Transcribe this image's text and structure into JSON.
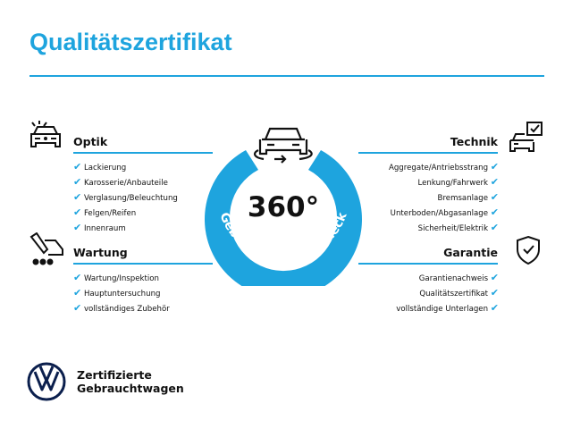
{
  "title": "Qualitätszertifikat",
  "center": {
    "degrees": "360°",
    "ring_text": "Gebrauchtwagen-Check",
    "color": "#1ea4de"
  },
  "sections": {
    "optik": {
      "heading": "Optik",
      "items": [
        "Lackierung",
        "Karosserie/Anbauteile",
        "Verglasung/Beleuchtung",
        "Felgen/Reifen",
        "Innenraum"
      ]
    },
    "wartung": {
      "heading": "Wartung",
      "items": [
        "Wartung/Inspektion",
        "Hauptuntersuchung",
        "vollständiges Zubehör"
      ]
    },
    "technik": {
      "heading": "Technik",
      "items": [
        "Aggregate/Antriebsstrang",
        "Lenkung/Fahrwerk",
        "Bremsanlage",
        "Unterboden/Abgasanlage",
        "Sicherheit/Elektrik"
      ]
    },
    "garantie": {
      "heading": "Garantie",
      "items": [
        "Garantienachweis",
        "Qualitätszertifikat",
        "vollständige Unterlagen"
      ]
    }
  },
  "brand": {
    "line1": "Zertifizierte",
    "line2": "Gebrauchtwagen"
  },
  "check": "✔"
}
